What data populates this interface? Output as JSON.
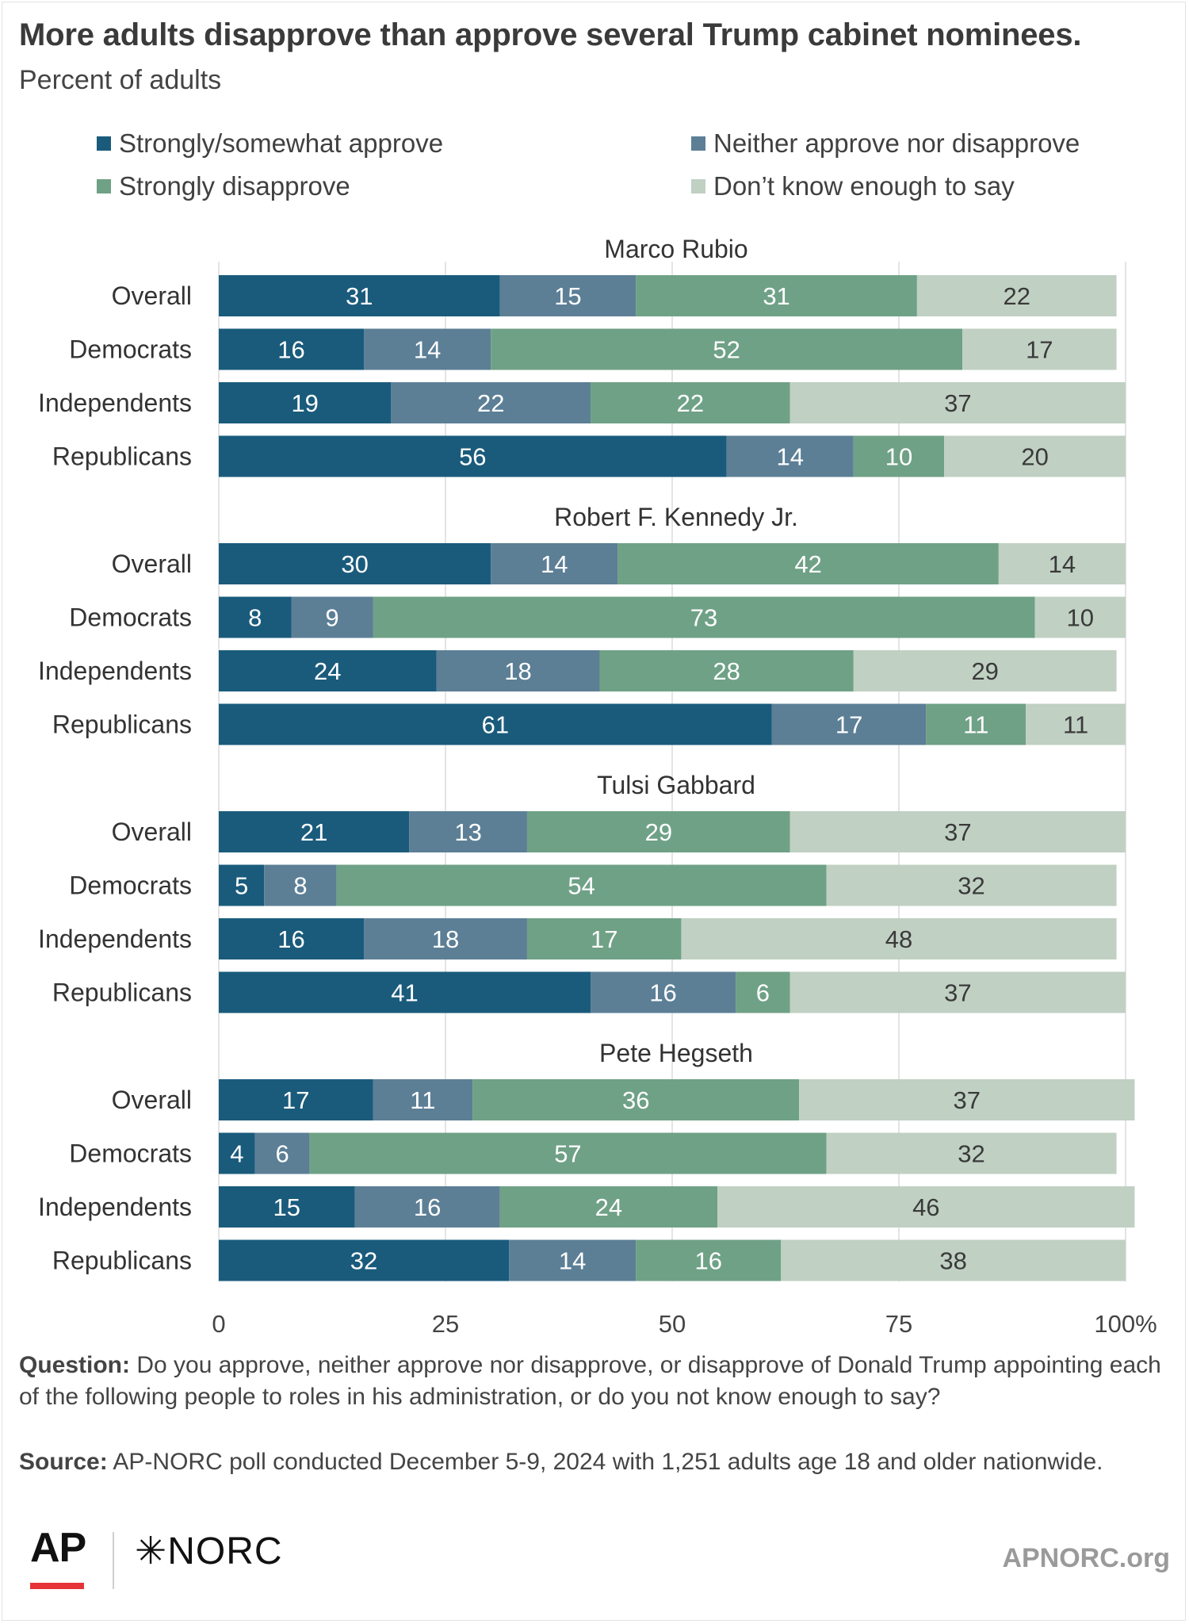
{
  "title": "More adults disapprove than approve several Trump cabinet nominees.",
  "subtitle": "Percent of adults",
  "legend": [
    {
      "label": "Strongly/somewhat approve",
      "color": "#1a5b7c"
    },
    {
      "label": "Neither approve nor disapprove",
      "color": "#5c7f96"
    },
    {
      "label": "Strongly disapprove",
      "color": "#6fa186"
    },
    {
      "label": "Don’t know enough to say",
      "color": "#c0d0c3"
    }
  ],
  "chart_data": {
    "type": "bar",
    "orientation": "horizontal",
    "stacked": true,
    "xlim": [
      0,
      100
    ],
    "x_ticks": [
      "0",
      "25",
      "50",
      "75",
      "100%"
    ],
    "grid": true,
    "legend_position": "top",
    "series_names": [
      "Strongly/somewhat approve",
      "Neither approve nor disapprove",
      "Strongly disapprove",
      "Don’t know enough to say"
    ],
    "series_colors": [
      "#1a5b7c",
      "#5c7f96",
      "#6fa186",
      "#c0d0c3"
    ],
    "groups": [
      {
        "name": "Marco Rubio",
        "rows": [
          {
            "label": "Overall",
            "values": [
              31,
              15,
              31,
              22
            ]
          },
          {
            "label": "Democrats",
            "values": [
              16,
              14,
              52,
              17
            ]
          },
          {
            "label": "Independents",
            "values": [
              19,
              22,
              22,
              37
            ]
          },
          {
            "label": "Republicans",
            "values": [
              56,
              14,
              10,
              20
            ]
          }
        ]
      },
      {
        "name": "Robert F. Kennedy Jr.",
        "rows": [
          {
            "label": "Overall",
            "values": [
              30,
              14,
              42,
              14
            ]
          },
          {
            "label": "Democrats",
            "values": [
              8,
              9,
              73,
              10
            ]
          },
          {
            "label": "Independents",
            "values": [
              24,
              18,
              28,
              29
            ]
          },
          {
            "label": "Republicans",
            "values": [
              61,
              17,
              11,
              11
            ]
          }
        ]
      },
      {
        "name": "Tulsi Gabbard",
        "rows": [
          {
            "label": "Overall",
            "values": [
              21,
              13,
              29,
              37
            ]
          },
          {
            "label": "Democrats",
            "values": [
              5,
              8,
              54,
              32
            ]
          },
          {
            "label": "Independents",
            "values": [
              16,
              18,
              17,
              48
            ]
          },
          {
            "label": "Republicans",
            "values": [
              41,
              16,
              6,
              37
            ]
          }
        ]
      },
      {
        "name": "Pete Hegseth",
        "rows": [
          {
            "label": "Overall",
            "values": [
              17,
              11,
              36,
              37
            ]
          },
          {
            "label": "Democrats",
            "values": [
              4,
              6,
              57,
              32
            ]
          },
          {
            "label": "Independents",
            "values": [
              15,
              16,
              24,
              46
            ]
          },
          {
            "label": "Republicans",
            "values": [
              32,
              14,
              16,
              38
            ]
          }
        ]
      }
    ]
  },
  "footer": {
    "question_label": "Question:",
    "question_text": "Do you approve, neither approve nor disapprove, or disapprove of Donald Trump appointing each of the following people to roles in his administration, or do you not know enough to say?",
    "source_label": "Source:",
    "source_text": "AP-NORC poll conducted December 5-9, 2024 with 1,251 adults age 18 and older nationwide."
  },
  "logos": {
    "ap": "AP",
    "norc": "✳NORC",
    "site": "APNORC.org"
  }
}
